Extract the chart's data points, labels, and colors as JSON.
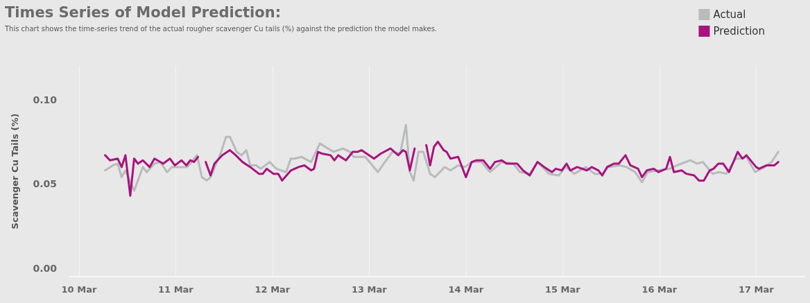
{
  "chart_data": {
    "type": "line",
    "title": "Times Series of Model Prediction:",
    "subtitle": "This chart shows the time-series trend of the actual rougher scavenger Cu tails (%) against the prediction the model makes.",
    "ylabel": "Scavenger Cu Tails (%)",
    "xlim": [
      "--03-09T21:36",
      "--03-17T12:00"
    ],
    "xticks": [
      {
        "value": "--03-10",
        "label": "10 Mar"
      },
      {
        "value": "--03-11",
        "label": "11 Mar"
      },
      {
        "value": "--03-12",
        "label": "12 Mar"
      },
      {
        "value": "--03-13",
        "label": "13 Mar"
      },
      {
        "value": "--03-14",
        "label": "14 Mar"
      },
      {
        "value": "--03-15",
        "label": "15 Mar"
      },
      {
        "value": "--03-16",
        "label": "16 Mar"
      },
      {
        "value": "--03-17",
        "label": "17 Mar"
      }
    ],
    "ylim": [
      -0.005,
      0.12
    ],
    "yticks": [
      {
        "value": 0,
        "label": "0.00"
      },
      {
        "value": 0.05,
        "label": "0.05"
      },
      {
        "value": 0.1,
        "label": "0.10"
      }
    ],
    "grid": "x",
    "legend": "top right",
    "marker": "none",
    "line_style": "solid",
    "series": [
      {
        "name": "Actual",
        "color": "#b8babc",
        "x": [
          "--03-10T06:29",
          "--03-10T08:24",
          "--03-10T09:36",
          "--03-10T10:34",
          "--03-10T11:31",
          "--03-10T13:41",
          "--03-10T15:50",
          "--03-10T16:48",
          "--03-10T18:43",
          "--03-10T20:10",
          "--03-10T21:50",
          "--03-10T23:02",
          "--03-11T01:55",
          "--03-11T02:53",
          "--03-11T05:17",
          "--03-11T06:29",
          "--03-11T07:41",
          "--03-11T08:38",
          "--03-11T11:17",
          "--03-11T12:29",
          "--03-11T13:26",
          "--03-11T15:07",
          "--03-11T16:19",
          "--03-11T17:31",
          "--03-11T18:29",
          "--03-11T19:55",
          "--03-11T21:07",
          "--03-11T23:17",
          "--03-12T00:58",
          "--03-12T03:22",
          "--03-12T04:34",
          "--03-12T05:31",
          "--03-12T07:12",
          "--03-12T09:36",
          "--03-12T11:46",
          "--03-12T15:07",
          "--03-12T17:31",
          "--03-12T19:12",
          "--03-12T20:10",
          "--03-12T23:02",
          "--03-13T02:10",
          "--03-13T03:36",
          "--03-13T05:46",
          "--03-13T07:41",
          "--03-13T09:07",
          "--03-13T10:05",
          "--03-13T11:02",
          "--03-13T12:14",
          "--03-13T13:26",
          "--03-13T15:07",
          "--03-13T16:19",
          "--03-13T18:43",
          "--03-13T20:10",
          "--03-13T22:05",
          "--03-13T23:46",
          "--03-14T01:26",
          "--03-14T03:50",
          "--03-14T06:00",
          "--03-14T08:53",
          "--03-14T11:46",
          "--03-14T13:26",
          "--03-14T15:50",
          "--03-14T17:46",
          "--03-14T20:38",
          "--03-14T23:02",
          "--03-15T00:43",
          "--03-15T02:53",
          "--03-15T05:46",
          "--03-15T07:55",
          "--03-15T09:50",
          "--03-15T11:17",
          "--03-15T14:10",
          "--03-15T15:50",
          "--03-15T18:00",
          "--03-15T19:41",
          "--03-15T21:07",
          "--03-15T23:46",
          "--03-16T02:38",
          "--03-16T04:19",
          "--03-16T07:41",
          "--03-16T09:22",
          "--03-16T10:48",
          "--03-16T13:12",
          "--03-16T14:53",
          "--03-16T16:34",
          "--03-16T18:58",
          "--03-16T19:55",
          "--03-16T21:36",
          "--03-16T23:46",
          "--03-17T02:10",
          "--03-17T03:50",
          "--03-17T05:31"
        ],
        "values": [
          0.058,
          0.061,
          0.062,
          0.054,
          0.058,
          0.046,
          0.06,
          0.057,
          0.062,
          0.063,
          0.057,
          0.06,
          0.06,
          0.06,
          0.067,
          0.054,
          0.052,
          0.054,
          0.069,
          0.078,
          0.078,
          0.069,
          0.067,
          0.07,
          0.061,
          0.061,
          0.059,
          0.063,
          0.059,
          0.057,
          0.065,
          0.065,
          0.066,
          0.063,
          0.074,
          0.069,
          0.071,
          0.069,
          0.066,
          0.066,
          0.057,
          0.062,
          0.069,
          0.068,
          0.085,
          0.057,
          0.052,
          0.069,
          0.069,
          0.056,
          0.054,
          0.06,
          0.058,
          0.061,
          0.06,
          0.063,
          0.063,
          0.057,
          0.063,
          0.062,
          0.057,
          0.056,
          0.063,
          0.056,
          0.055,
          0.06,
          0.056,
          0.06,
          0.056,
          0.056,
          0.06,
          0.061,
          0.06,
          0.057,
          0.051,
          0.057,
          0.058,
          0.059,
          0.061,
          0.064,
          0.062,
          0.063,
          0.056,
          0.057,
          0.056,
          0.065,
          0.065,
          0.066,
          0.057,
          0.06,
          0.063,
          0.069
        ]
      },
      {
        "name": "Prediction",
        "color": "#a8137e",
        "x": [
          "--03-10T06:29",
          "--03-10T07:41",
          "--03-10T09:36",
          "--03-10T10:34",
          "--03-10T11:31",
          "--03-10T12:43",
          "--03-10T13:41",
          "--03-10T14:38",
          "--03-10T15:50",
          "--03-10T17:31",
          "--03-10T18:43",
          "--03-10T20:53",
          "--03-10T22:34",
          "--03-10T23:46",
          "--03-11T01:26",
          "--03-11T02:38",
          "--03-11T03:36",
          "--03-11T04:34",
          "--03-11T05:31",
          "--03-11T06:43",
          "--03-11T07:26",
          "--03-11T08:38",
          "--03-11T09:36",
          "--03-11T11:31",
          "--03-11T13:26",
          "--03-11T14:53",
          "--03-11T16:34",
          "--03-11T18:29",
          "--03-11T20:38",
          "--03-11T21:36",
          "--03-11T22:34",
          "--03-12T00:14",
          "--03-12T01:26",
          "--03-12T02:24",
          "--03-12T04:34",
          "--03-12T06:29",
          "--03-12T07:55",
          "--03-12T09:36",
          "--03-12T10:19",
          "--03-12T11:17",
          "--03-12T12:14",
          "--03-12T14:24",
          "--03-12T15:22",
          "--03-12T16:19",
          "--03-12T18:14",
          "--03-12T19:55",
          "--03-12T21:07",
          "--03-12T22:05",
          "--03-13T01:12",
          "--03-13T02:53",
          "--03-13T05:17",
          "--03-13T07:12",
          "--03-13T08:24",
          "--03-13T09:07",
          "--03-13T10:05",
          "--03-13T11:17",
          "--03-13T13:12",
          "--03-13T14:10",
          "--03-13T15:07",
          "--03-13T16:05",
          "--03-13T17:02",
          "--03-13T18:29",
          "--03-13T19:12",
          "--03-13T20:10",
          "--03-13T22:05",
          "--03-14T00:00",
          "--03-14T01:26",
          "--03-14T02:38",
          "--03-14T04:19",
          "--03-14T06:00",
          "--03-14T07:12",
          "--03-14T08:53",
          "--03-14T10:05",
          "--03-14T12:43",
          "--03-14T14:10",
          "--03-14T15:50",
          "--03-14T17:46",
          "--03-14T19:26",
          "--03-14T21:22",
          "--03-14T22:19",
          "--03-14T23:46",
          "--03-15T00:58",
          "--03-15T01:55",
          "--03-15T03:36",
          "--03-15T06:00",
          "--03-15T07:12",
          "--03-15T08:53",
          "--03-15T09:50",
          "--03-15T11:02",
          "--03-15T12:43",
          "--03-15T13:55",
          "--03-15T15:36",
          "--03-15T16:48",
          "--03-15T18:43",
          "--03-15T19:41",
          "--03-15T20:53",
          "--03-15T22:34",
          "--03-15T23:46",
          "--03-16T01:41",
          "--03-16T02:38",
          "--03-16T03:36",
          "--03-16T05:31",
          "--03-16T06:43",
          "--03-16T08:38",
          "--03-16T09:50",
          "--03-16T11:02",
          "--03-16T12:29",
          "--03-16T13:26",
          "--03-16T14:38",
          "--03-16T15:50",
          "--03-16T17:17",
          "--03-16T19:26",
          "--03-16T20:38",
          "--03-16T21:36",
          "--03-17T00:00",
          "--03-17T00:43",
          "--03-17T02:38",
          "--03-17T04:34",
          "--03-17T05:31"
        ],
        "values": [
          0.067,
          0.064,
          0.065,
          0.06,
          0.067,
          0.043,
          0.065,
          0.062,
          0.064,
          0.06,
          0.065,
          0.062,
          0.065,
          0.061,
          0.064,
          0.061,
          0.064,
          0.063,
          0.066,
          null,
          0.063,
          0.055,
          0.062,
          0.067,
          0.07,
          0.067,
          0.063,
          0.06,
          0.056,
          0.056,
          0.059,
          0.056,
          0.056,
          0.052,
          0.058,
          0.06,
          0.061,
          0.058,
          0.059,
          0.069,
          0.068,
          0.067,
          0.064,
          0.067,
          0.064,
          0.069,
          0.069,
          0.07,
          0.065,
          0.068,
          0.071,
          0.067,
          0.07,
          0.069,
          0.058,
          0.071,
          null,
          0.073,
          0.061,
          0.072,
          0.075,
          0.07,
          0.069,
          0.065,
          0.066,
          0.054,
          0.063,
          0.064,
          0.064,
          0.059,
          0.063,
          0.064,
          0.062,
          0.062,
          0.058,
          0.055,
          0.063,
          0.06,
          0.057,
          0.059,
          0.058,
          0.062,
          0.058,
          0.06,
          0.058,
          0.06,
          0.058,
          0.055,
          0.06,
          0.062,
          0.062,
          0.067,
          0.061,
          0.059,
          0.054,
          0.058,
          0.059,
          0.057,
          0.059,
          0.066,
          0.057,
          0.058,
          0.056,
          0.055,
          0.052,
          0.052,
          0.058,
          0.059,
          0.062,
          0.062,
          0.057,
          0.069,
          0.065,
          0.067,
          0.06,
          0.059,
          0.061,
          0.061,
          0.063
        ]
      }
    ]
  }
}
